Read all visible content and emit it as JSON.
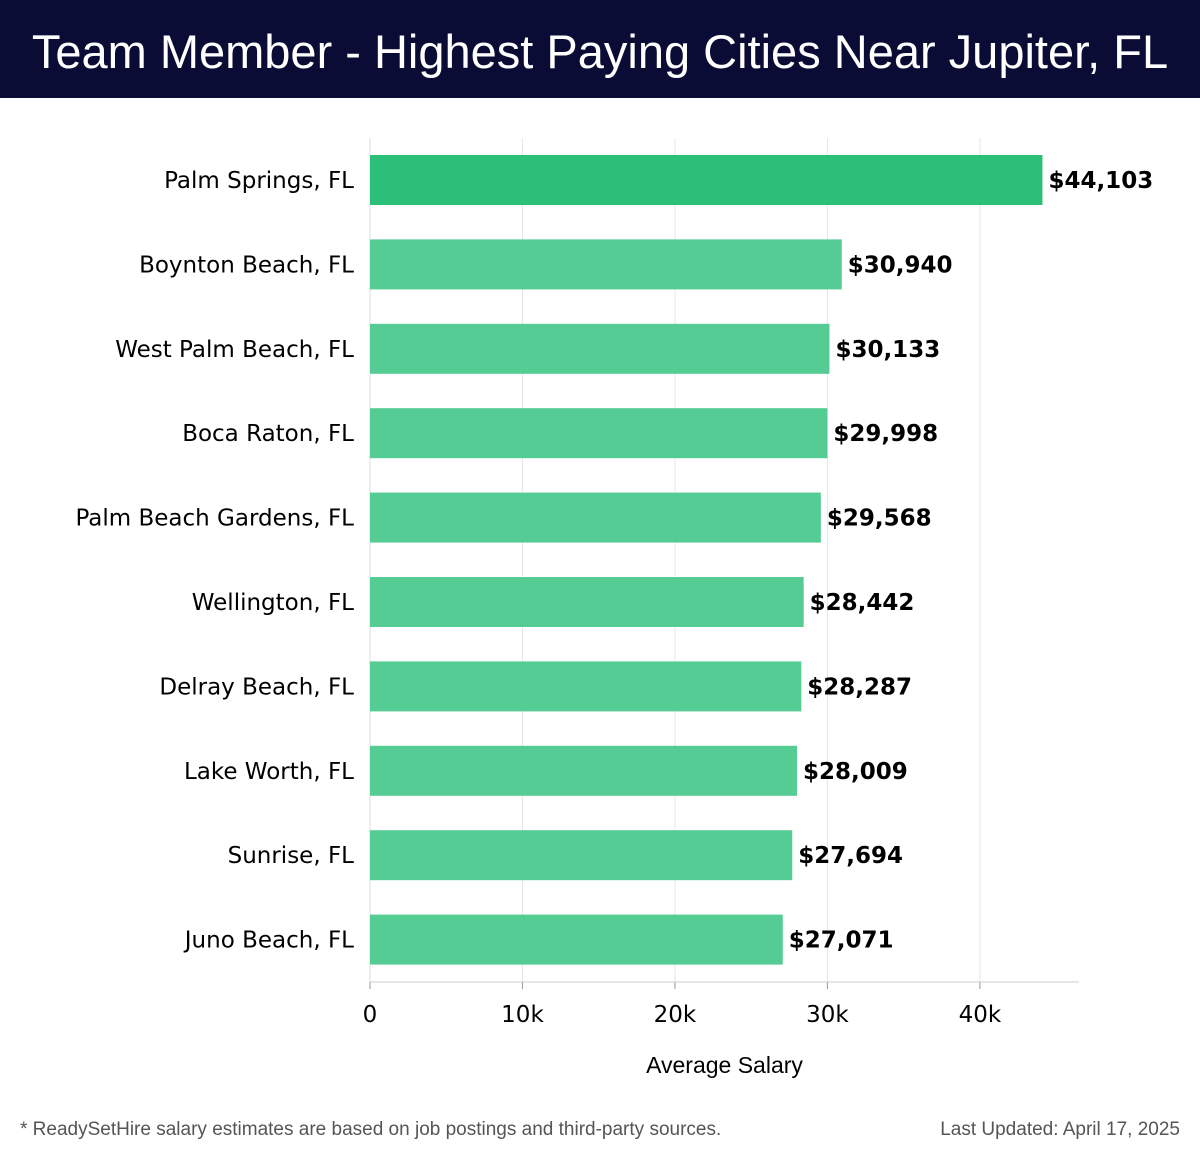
{
  "header": {
    "title": "Team Member - Highest Paying Cities Near Jupiter, FL"
  },
  "colors": {
    "header_bg": "#0b0c35",
    "bar_highlight": "#2bbf78",
    "bar_default": "#55cc94",
    "grid": "#e6e6e6"
  },
  "chart_data": {
    "type": "bar",
    "orientation": "horizontal",
    "categories": [
      "Palm Springs, FL",
      "Boynton Beach, FL",
      "West Palm Beach, FL",
      "Boca Raton, FL",
      "Palm Beach Gardens, FL",
      "Wellington, FL",
      "Delray Beach, FL",
      "Lake Worth, FL",
      "Sunrise, FL",
      "Juno Beach, FL"
    ],
    "values": [
      44103,
      30940,
      30133,
      29998,
      29568,
      28442,
      28287,
      28009,
      27694,
      27071
    ],
    "value_labels": [
      "$44,103",
      "$30,940",
      "$30,133",
      "$29,998",
      "$29,568",
      "$28,442",
      "$28,287",
      "$28,009",
      "$27,694",
      "$27,071"
    ],
    "xlabel": "Average Salary",
    "ylabel": "",
    "xlim": [
      0,
      46500
    ],
    "xticks": [
      0,
      10000,
      20000,
      30000,
      40000
    ],
    "xtick_labels": [
      "0",
      "10k",
      "20k",
      "30k",
      "40k"
    ],
    "grid": true,
    "highlight_index": 0
  },
  "footer": {
    "note": "* ReadySetHire salary estimates are based on job postings and third-party sources.",
    "updated": "Last Updated: April 17, 2025"
  }
}
